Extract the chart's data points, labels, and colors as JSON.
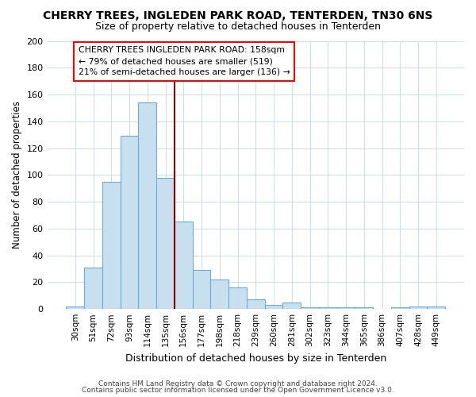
{
  "title": "CHERRY TREES, INGLEDEN PARK ROAD, TENTERDEN, TN30 6NS",
  "subtitle": "Size of property relative to detached houses in Tenterden",
  "xlabel": "Distribution of detached houses by size in Tenterden",
  "ylabel": "Number of detached properties",
  "bar_labels": [
    "30sqm",
    "51sqm",
    "72sqm",
    "93sqm",
    "114sqm",
    "135sqm",
    "156sqm",
    "177sqm",
    "198sqm",
    "218sqm",
    "239sqm",
    "260sqm",
    "281sqm",
    "302sqm",
    "323sqm",
    "344sqm",
    "365sqm",
    "386sqm",
    "407sqm",
    "428sqm",
    "449sqm"
  ],
  "bar_values": [
    2,
    31,
    95,
    129,
    154,
    98,
    65,
    29,
    22,
    16,
    7,
    3,
    5,
    1,
    1,
    1,
    1,
    0,
    1,
    2,
    2
  ],
  "bar_color": "#c8dff0",
  "bar_edge_color": "#6aaed6",
  "background_color": "#ffffff",
  "grid_color": "#d0dce8",
  "vline_x": 5.5,
  "vline_color": "#8b0000",
  "annotation_text": "CHERRY TREES INGLEDEN PARK ROAD: 158sqm\n← 79% of detached houses are smaller (519)\n21% of semi-detached houses are larger (136) →",
  "ylim": [
    0,
    200
  ],
  "yticks": [
    0,
    20,
    40,
    60,
    80,
    100,
    120,
    140,
    160,
    180,
    200
  ],
  "footnote1": "Contains HM Land Registry data © Crown copyright and database right 2024.",
  "footnote2": "Contains public sector information licensed under the Open Government Licence v3.0."
}
